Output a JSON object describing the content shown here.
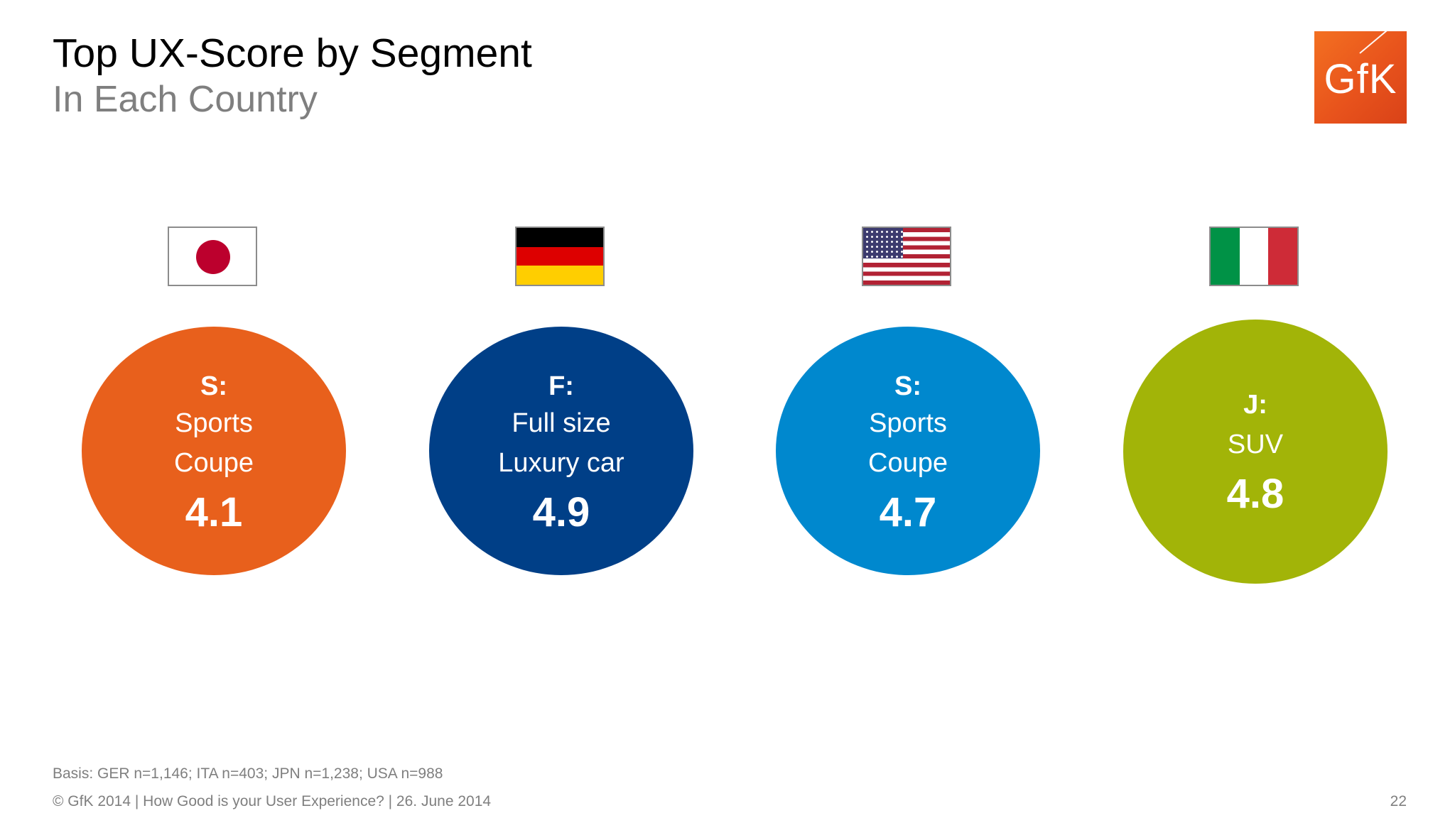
{
  "slide": {
    "title": "Top UX-Score by Segment",
    "subtitle": "In Each Country"
  },
  "logo": {
    "text": "GfK",
    "color": "#f37021"
  },
  "segments": [
    {
      "country_flag": "japan-flag",
      "code": "S:",
      "lines": [
        "Sports",
        "Coupe"
      ],
      "score": "4.1",
      "color": "#e8601c"
    },
    {
      "country_flag": "germany-flag",
      "code": "F:",
      "lines": [
        "Full size",
        "Luxury car"
      ],
      "score": "4.9",
      "color": "#003f87"
    },
    {
      "country_flag": "usa-flag",
      "code": "S:",
      "lines": [
        "Sports",
        "Coupe"
      ],
      "score": "4.7",
      "color": "#0088ce"
    },
    {
      "country_flag": "italy-flag",
      "code": "J:",
      "lines": [
        "SUV"
      ],
      "score": "4.8",
      "color": "#a2b408"
    }
  ],
  "footer": {
    "basis": "Basis:  GER n=1,146; ITA n=403; JPN n=1,238; USA n=988",
    "copyright": "© GfK 2014 | How Good is your User Experience? | 26. June 2014",
    "page_number": "22"
  }
}
